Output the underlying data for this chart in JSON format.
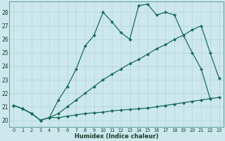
{
  "xlabel": "Humidex (Indice chaleur)",
  "background_color": "#cce8ec",
  "grid_color": "#aad4da",
  "line_color": "#1a6b5a",
  "xlim": [
    -0.5,
    23.5
  ],
  "ylim": [
    19.5,
    28.8
  ],
  "yticks": [
    20,
    21,
    22,
    23,
    24,
    25,
    26,
    27,
    28
  ],
  "xticks": [
    0,
    1,
    2,
    3,
    4,
    5,
    6,
    7,
    8,
    9,
    10,
    11,
    12,
    13,
    14,
    15,
    16,
    17,
    18,
    19,
    20,
    21,
    22,
    23
  ],
  "line1_x": [
    0,
    1,
    2,
    3,
    4,
    5,
    6,
    7,
    8,
    9,
    10,
    11,
    12,
    13,
    14,
    15,
    16,
    17,
    18,
    19,
    20,
    21,
    22
  ],
  "line1_y": [
    21.1,
    20.85,
    20.5,
    20.0,
    20.2,
    21.5,
    22.5,
    23.8,
    25.5,
    26.3,
    28.0,
    27.3,
    26.5,
    26.0,
    28.5,
    28.6,
    27.8,
    28.0,
    27.8,
    26.3,
    25.0,
    23.8,
    21.6
  ],
  "line2_x": [
    0,
    1,
    2,
    3,
    4,
    5,
    6,
    7,
    8,
    9,
    10,
    11,
    12,
    13,
    14,
    15,
    16,
    17,
    18,
    19,
    20,
    21,
    22,
    23
  ],
  "line2_y": [
    21.1,
    20.85,
    20.5,
    20.0,
    20.2,
    20.5,
    21.0,
    21.5,
    22.0,
    22.5,
    23.0,
    23.4,
    23.8,
    24.2,
    24.5,
    24.9,
    25.3,
    25.6,
    26.0,
    26.3,
    26.7,
    27.0,
    25.0,
    23.1
  ],
  "line3_x": [
    0,
    1,
    2,
    3,
    4,
    5,
    6,
    7,
    8,
    9,
    10,
    11,
    12,
    13,
    14,
    15,
    16,
    17,
    18,
    19,
    20,
    21,
    22,
    23
  ],
  "line3_y": [
    21.1,
    20.85,
    20.5,
    20.0,
    20.2,
    20.2,
    20.3,
    20.4,
    20.5,
    20.55,
    20.6,
    20.7,
    20.75,
    20.8,
    20.85,
    20.9,
    21.0,
    21.1,
    21.2,
    21.3,
    21.4,
    21.5,
    21.6,
    21.7
  ]
}
